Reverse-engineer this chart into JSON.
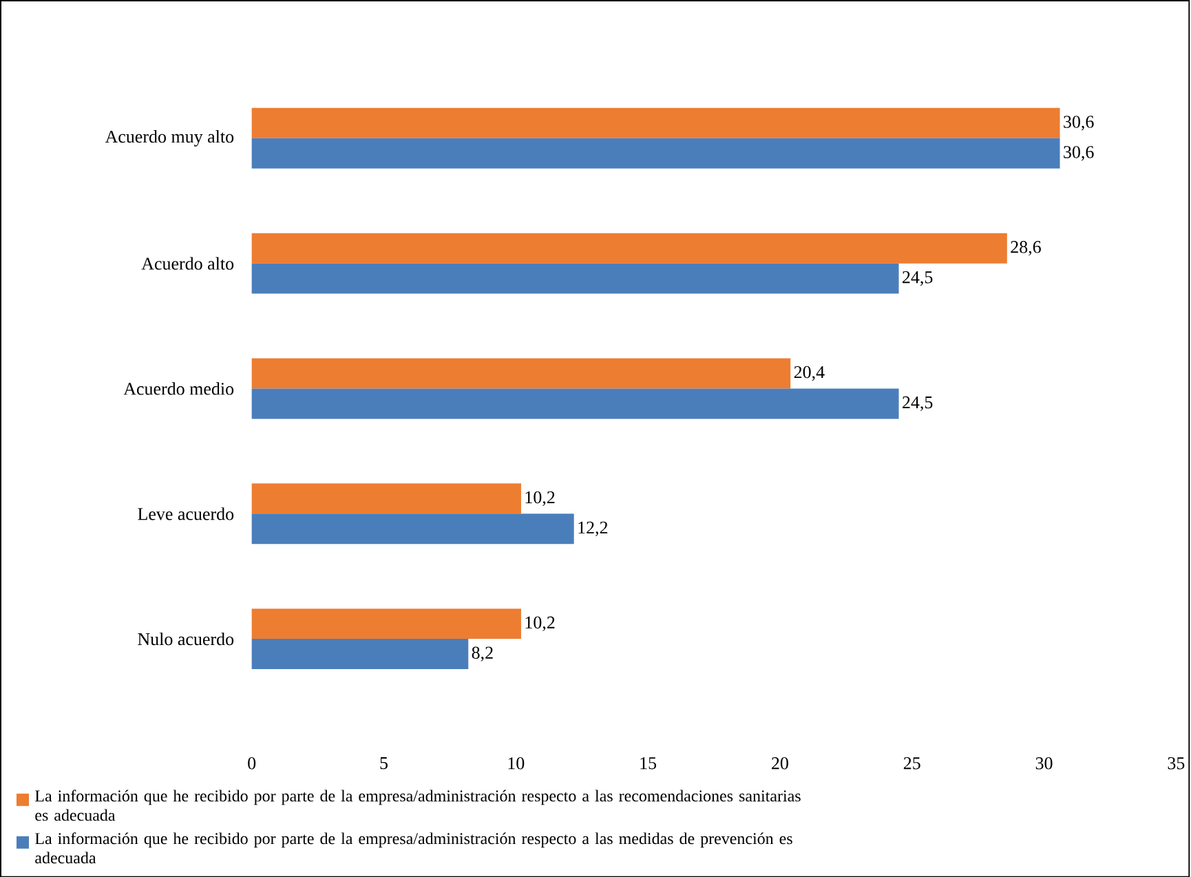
{
  "chart_data": {
    "type": "bar",
    "orientation": "horizontal",
    "categories": [
      "Acuerdo muy alto",
      "Acuerdo alto",
      "Acuerdo medio",
      "Leve acuerdo",
      "Nulo acuerdo"
    ],
    "series": [
      {
        "name": "La información que he recibido por parte de la empresa/administración respecto a las recomendaciones sanitarias es adecuada",
        "color": "#ed7d31",
        "values": [
          30.6,
          28.6,
          20.4,
          10.2,
          10.2
        ],
        "value_labels": [
          "30,6",
          "28,6",
          "20,4",
          "10,2",
          "10,2"
        ]
      },
      {
        "name": "La información que he recibido por parte de la empresa/administración respecto a las medidas de prevención es adecuada",
        "color": "#4a7ebb",
        "values": [
          30.6,
          24.5,
          24.5,
          12.2,
          8.2
        ],
        "value_labels": [
          "30,6",
          "24,5",
          "24,5",
          "12,2",
          "8,2"
        ]
      }
    ],
    "xlim": [
      0,
      35
    ],
    "xticks": [
      0,
      5,
      10,
      15,
      20,
      25,
      30,
      35
    ],
    "grid": false,
    "legend": "bottom"
  }
}
